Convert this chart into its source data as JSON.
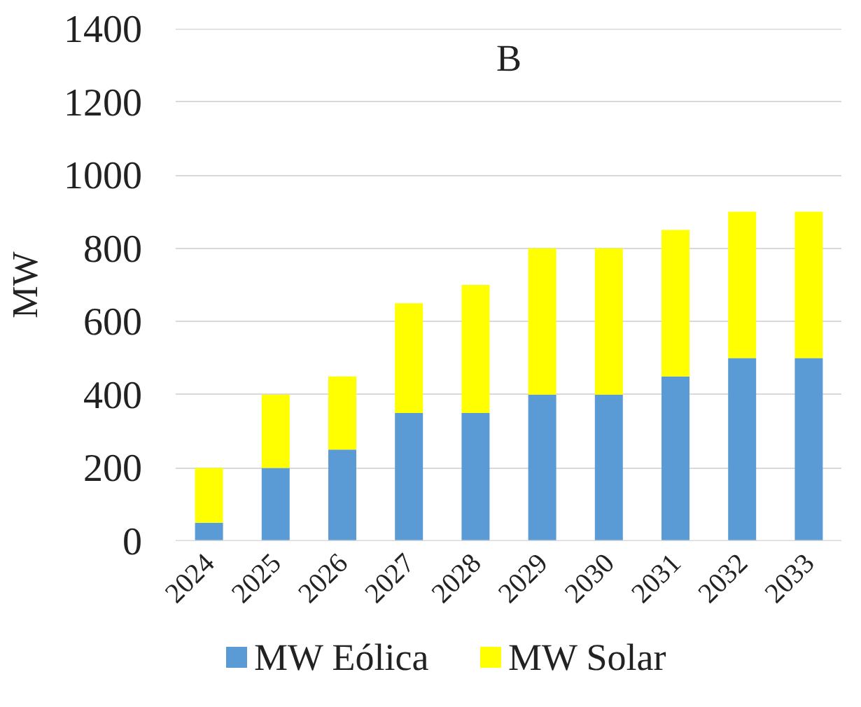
{
  "chart_data": {
    "type": "bar",
    "title": "B",
    "ylabel": "MW",
    "stacked": true,
    "categories": [
      "2024",
      "2025",
      "2026",
      "2027",
      "2028",
      "2029",
      "2030",
      "2031",
      "2032",
      "2033"
    ],
    "series": [
      {
        "name": "MW Eólica",
        "color": "#5b9bd5",
        "values": [
          50,
          200,
          250,
          350,
          350,
          400,
          400,
          450,
          500,
          500
        ]
      },
      {
        "name": "MW Solar",
        "color": "#ffff00",
        "values": [
          150,
          200,
          200,
          300,
          350,
          400,
          400,
          400,
          400,
          400
        ]
      }
    ],
    "ylim": [
      0,
      1400
    ],
    "yticks": [
      0,
      200,
      400,
      600,
      800,
      1000,
      1200,
      1400
    ],
    "grid": "y",
    "legend": "bottom"
  }
}
